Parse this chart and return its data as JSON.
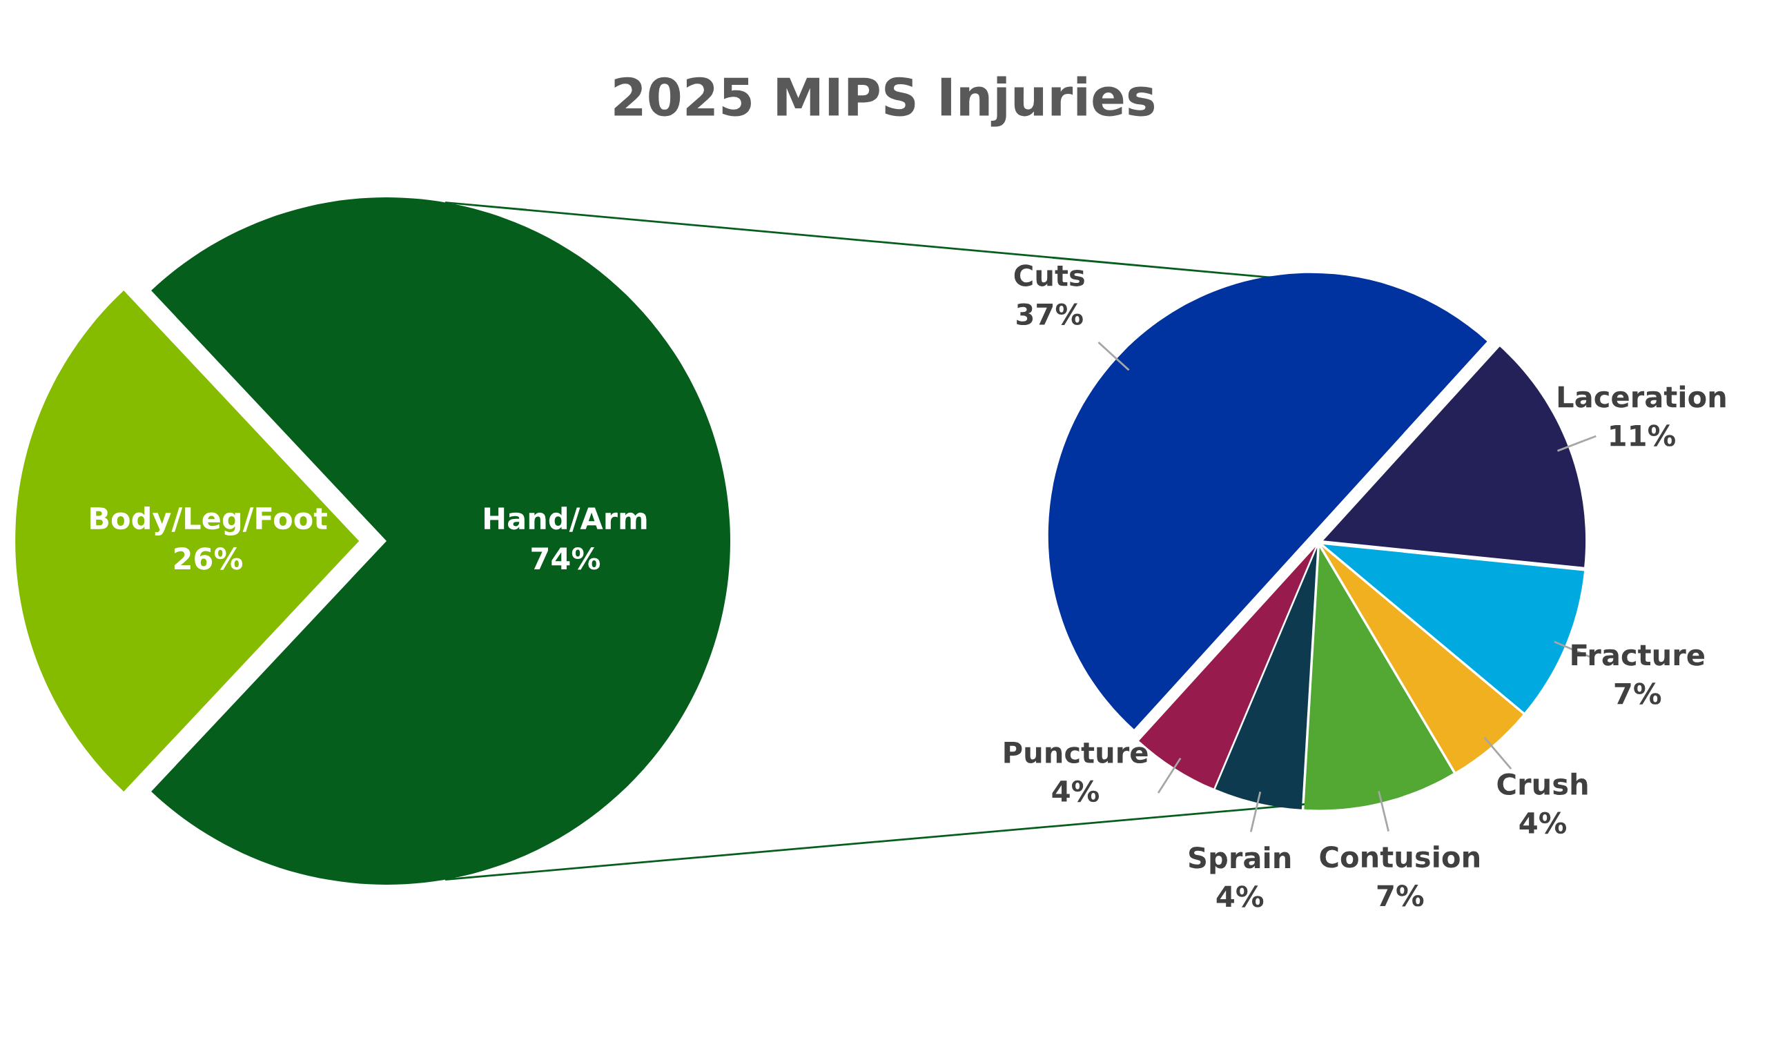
{
  "chart_data": [
    {
      "type": "pie",
      "title": "2025 MIPS Injuries",
      "categories": [
        "Hand/Arm",
        "Body/Leg/Foot"
      ],
      "values": [
        74,
        26
      ],
      "value_labels": [
        "74%",
        "26%"
      ],
      "colors": [
        "#055e1c",
        "#86bc00"
      ]
    },
    {
      "type": "pie",
      "categories": [
        "Cuts",
        "Laceration",
        "Fracture",
        "Crush",
        "Contusion",
        "Sprain",
        "Puncture"
      ],
      "values": [
        37,
        11,
        7,
        4,
        7,
        4,
        4
      ],
      "value_labels": [
        "37%",
        "11%",
        "7%",
        "4%",
        "7%",
        "4%",
        "4%"
      ],
      "colors": [
        "#0033a0",
        "#232157",
        "#00a9e0",
        "#f0b020",
        "#52a833",
        "#0e3a50",
        "#981b4e"
      ]
    }
  ]
}
